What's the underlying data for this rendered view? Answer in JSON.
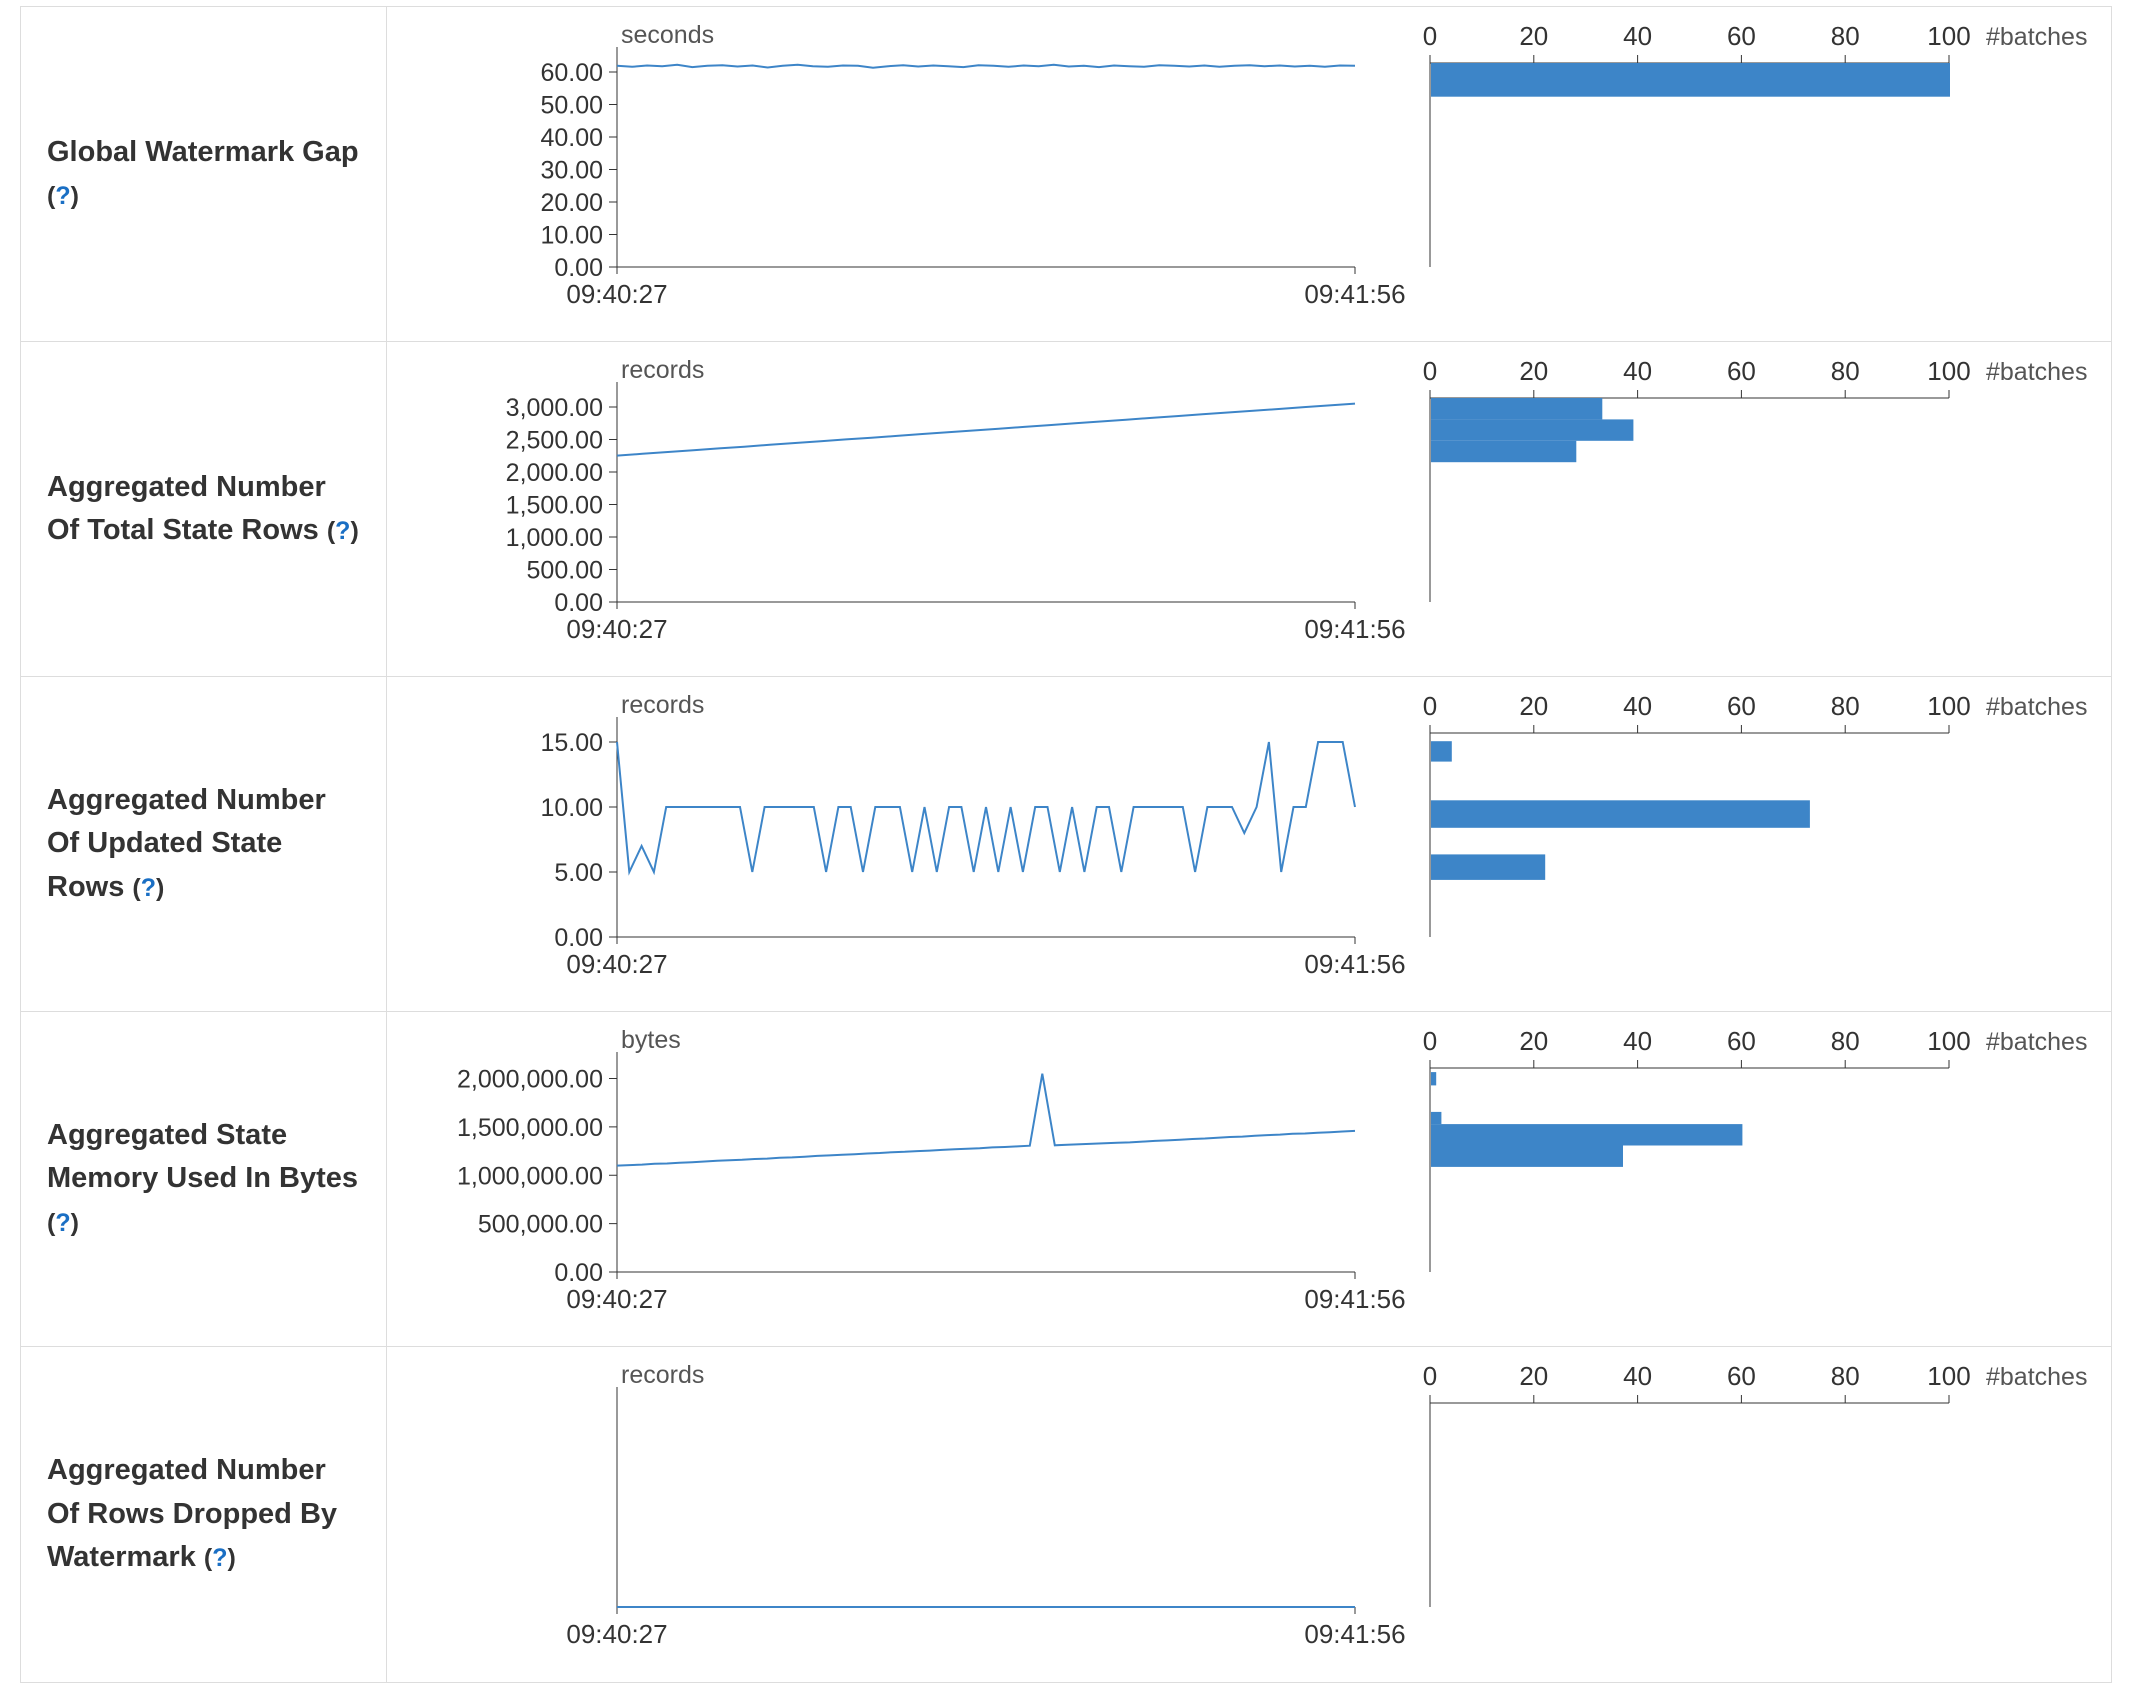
{
  "colors": {
    "accent": "#3d85c8",
    "link": "#1a6fc4",
    "axis": "#333333",
    "text": "#333333",
    "muted": "#555555",
    "border": "#dddddd"
  },
  "help": {
    "open": "(",
    "question": "?",
    "close": ")"
  },
  "chart_data": [
    {
      "label": "Global Watermark Gap",
      "timeline": {
        "type": "line",
        "unit": "seconds",
        "y_ticks": [
          "60.00",
          "50.00",
          "40.00",
          "30.00",
          "20.00",
          "10.00",
          "0.00"
        ],
        "y_max": 64,
        "x_labels": [
          "09:40:27",
          "09:41:56"
        ],
        "values": [
          61.9,
          61.6,
          62.0,
          61.8,
          62.2,
          61.5,
          61.9,
          62.1,
          61.7,
          62.0,
          61.4,
          61.9,
          62.2,
          61.8,
          61.6,
          62.0,
          61.9,
          61.3,
          61.8,
          62.1,
          61.7,
          62.0,
          61.8,
          61.5,
          62.1,
          61.9,
          61.6,
          62.0,
          61.8,
          62.2,
          61.7,
          61.9,
          61.5,
          62.0,
          61.8,
          61.6,
          62.1,
          61.9,
          61.7,
          62.0,
          61.6,
          61.9,
          62.1,
          61.8,
          62.0,
          61.7,
          61.9,
          61.6,
          62.0,
          61.9
        ]
      },
      "histogram": {
        "type": "bar",
        "unit": "#batches",
        "x_ticks": [
          "0",
          "20",
          "40",
          "60",
          "80",
          "100"
        ],
        "x_max": 100,
        "bars": [
          {
            "count": 100,
            "y": 0.0,
            "h": 0.165
          }
        ]
      }
    },
    {
      "label": "Aggregated Number Of Total State Rows",
      "timeline": {
        "type": "line",
        "unit": "records",
        "y_ticks": [
          "3,000.00",
          "2,500.00",
          "2,000.00",
          "1,500.00",
          "1,000.00",
          "500.00",
          "0.00"
        ],
        "y_max": 3200,
        "x_labels": [
          "09:40:27",
          "09:41:56"
        ],
        "values": [
          2252,
          2280,
          2308,
          2335,
          2363,
          2390,
          2418,
          2446,
          2473,
          2501,
          2528,
          2556,
          2584,
          2611,
          2639,
          2666,
          2694,
          2722,
          2749,
          2777,
          2804,
          2832,
          2860,
          2887,
          2915,
          2942,
          2970,
          2998,
          3025,
          3053
        ]
      },
      "histogram": {
        "type": "bar",
        "unit": "#batches",
        "x_ticks": [
          "0",
          "20",
          "40",
          "60",
          "80",
          "100"
        ],
        "x_max": 100,
        "bars": [
          {
            "count": 33,
            "y": 0.0,
            "h": 0.105
          },
          {
            "count": 39,
            "y": 0.105,
            "h": 0.105
          },
          {
            "count": 28,
            "y": 0.21,
            "h": 0.105
          }
        ]
      }
    },
    {
      "label": "Aggregated Number Of Updated State Rows",
      "timeline": {
        "type": "line",
        "unit": "records",
        "y_ticks": [
          "15.00",
          "10.00",
          "5.00",
          "0.00"
        ],
        "y_max": 16,
        "x_labels": [
          "09:40:27",
          "09:41:56"
        ],
        "values": [
          15,
          5,
          7,
          5,
          10,
          10,
          10,
          10,
          10,
          10,
          10,
          5,
          10,
          10,
          10,
          10,
          10,
          5,
          10,
          10,
          5,
          10,
          10,
          10,
          5,
          10,
          5,
          10,
          10,
          5,
          10,
          5,
          10,
          5,
          10,
          10,
          5,
          10,
          5,
          10,
          10,
          5,
          10,
          10,
          10,
          10,
          10,
          5,
          10,
          10,
          10,
          8,
          10,
          15,
          5,
          10,
          10,
          15,
          15,
          15,
          10
        ]
      },
      "histogram": {
        "type": "bar",
        "unit": "#batches",
        "x_ticks": [
          "0",
          "20",
          "40",
          "60",
          "80",
          "100"
        ],
        "x_max": 100,
        "bars": [
          {
            "count": 4,
            "y": 0.04,
            "h": 0.1
          },
          {
            "count": 73,
            "y": 0.33,
            "h": 0.135
          },
          {
            "count": 22,
            "y": 0.595,
            "h": 0.125
          }
        ]
      }
    },
    {
      "label": "Aggregated State Memory Used In Bytes",
      "timeline": {
        "type": "line",
        "unit": "bytes",
        "y_ticks": [
          "2,000,000.00",
          "1,500,000.00",
          "1,000,000.00",
          "500,000.00",
          "0.00"
        ],
        "y_max": 2150000,
        "x_labels": [
          "09:40:27",
          "09:41:56"
        ],
        "values": [
          1100000,
          1105000,
          1110000,
          1118000,
          1122000,
          1130000,
          1135000,
          1142000,
          1150000,
          1155000,
          1160000,
          1168000,
          1172000,
          1180000,
          1185000,
          1192000,
          1200000,
          1205000,
          1212000,
          1218000,
          1225000,
          1230000,
          1238000,
          1242000,
          1250000,
          1255000,
          1262000,
          1268000,
          1275000,
          1280000,
          1288000,
          1292000,
          1298000,
          1305000,
          2050000,
          1310000,
          1315000,
          1320000,
          1325000,
          1330000,
          1335000,
          1340000,
          1348000,
          1355000,
          1360000,
          1368000,
          1375000,
          1380000,
          1388000,
          1395000,
          1400000,
          1408000,
          1415000,
          1420000,
          1428000,
          1432000,
          1440000,
          1445000,
          1452000,
          1458000
        ]
      },
      "histogram": {
        "type": "bar",
        "unit": "#batches",
        "x_ticks": [
          "0",
          "20",
          "40",
          "60",
          "80",
          "100"
        ],
        "x_max": 100,
        "bars": [
          {
            "count": 1,
            "y": 0.02,
            "h": 0.065
          },
          {
            "count": 2,
            "y": 0.215,
            "h": 0.06
          },
          {
            "count": 60,
            "y": 0.275,
            "h": 0.105
          },
          {
            "count": 37,
            "y": 0.38,
            "h": 0.105
          }
        ]
      }
    },
    {
      "label": "Aggregated Number Of Rows Dropped By Watermark",
      "timeline": {
        "type": "line",
        "unit": "records",
        "y_ticks": [],
        "y_max": 1,
        "x_labels": [
          "09:40:27",
          "09:41:56"
        ],
        "values": [
          0,
          0,
          0,
          0,
          0,
          0,
          0,
          0,
          0,
          0
        ]
      },
      "histogram": {
        "type": "bar",
        "unit": "#batches",
        "x_ticks": [
          "0",
          "20",
          "40",
          "60",
          "80",
          "100"
        ],
        "x_max": 100,
        "bars": []
      }
    }
  ]
}
